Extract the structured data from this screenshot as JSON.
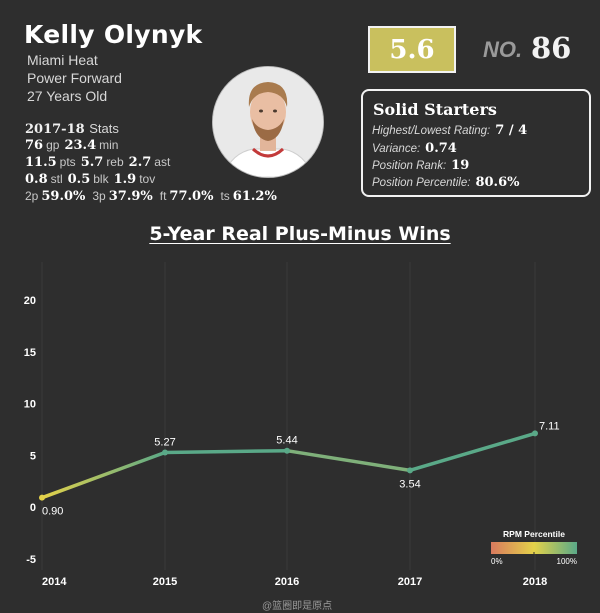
{
  "player": {
    "name": "Kelly Olynyk",
    "team": "Miami Heat",
    "position": "Power Forward",
    "age": "27 Years Old"
  },
  "season_stats": {
    "season": "2017-18",
    "title_label": "Stats",
    "rows": [
      [
        {
          "v": "76",
          "u": "gp"
        },
        {
          "v": "23.4",
          "u": "min"
        }
      ],
      [
        {
          "v": "11.5",
          "u": "pts"
        },
        {
          "v": "5.7",
          "u": "reb"
        },
        {
          "v": "2.7",
          "u": "ast"
        }
      ],
      [
        {
          "v": "0.8",
          "u": "stl"
        },
        {
          "v": "0.5",
          "u": "blk"
        },
        {
          "v": "1.9",
          "u": "tov"
        }
      ],
      [
        {
          "u": "2p",
          "v": "59.0%"
        },
        {
          "u": "3p",
          "v": "37.9%"
        },
        {
          "u": "ft",
          "v": "77.0%"
        },
        {
          "u": "ts",
          "v": "61.2%"
        }
      ]
    ]
  },
  "rating": {
    "score": "5.6",
    "score_color": "#c9c05e",
    "rank_label": "NO.",
    "rank": "86"
  },
  "tier": {
    "title": "Solid Starters",
    "rows": [
      {
        "label": "Highest/Lowest Rating:",
        "value": "7 / 4"
      },
      {
        "label": "Variance:",
        "value": "0.74"
      },
      {
        "label": "Position Rank:",
        "value": "19"
      },
      {
        "label": "Position Percentile:",
        "value": "80.6%"
      }
    ]
  },
  "chart_title": "5-Year Real Plus-Minus Wins",
  "chart_data": {
    "type": "line",
    "title": "5-Year Real Plus-Minus Wins",
    "xlabel": "",
    "ylabel": "",
    "x": [
      "2014",
      "2015",
      "2016",
      "2017",
      "2018"
    ],
    "values": [
      0.9,
      5.27,
      5.44,
      3.54,
      7.11
    ],
    "labels": [
      "0.90",
      "5.27",
      "5.44",
      "3.54",
      "7.11"
    ],
    "yticks": [
      -5,
      0,
      5,
      10,
      15,
      20
    ],
    "ylim": [
      -5.5,
      22
    ],
    "grid": "vertical",
    "legend": {
      "title": "RPM Percentile",
      "min_label": "0%",
      "max_label": "100%",
      "placement": "bottom-right",
      "colors": [
        "#d97a5e",
        "#e4d24a",
        "#5aa988"
      ]
    }
  },
  "watermark": "@篮圈即是原点"
}
